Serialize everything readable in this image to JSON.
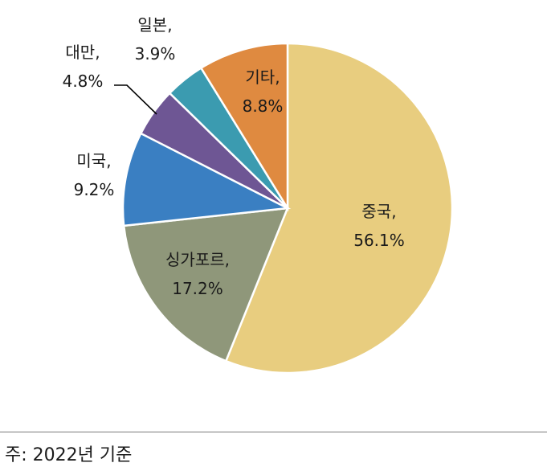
{
  "chart_data": {
    "type": "pie",
    "title": "",
    "slices": [
      {
        "label": "중국,",
        "value": 56.1,
        "value_label": "56.1%",
        "color": "#E8CD7F"
      },
      {
        "label": "싱가포르,",
        "value": 17.2,
        "value_label": "17.2%",
        "color": "#8F977A"
      },
      {
        "label": "미국,",
        "value": 9.2,
        "value_label": "9.2%",
        "color": "#3A7FC2"
      },
      {
        "label": "대만,",
        "value": 4.8,
        "value_label": "4.8%",
        "color": "#6E5694"
      },
      {
        "label": "일본,",
        "value": 3.9,
        "value_label": "3.9%",
        "color": "#3B9BB0"
      },
      {
        "label": "기타,",
        "value": 8.8,
        "value_label": "8.8%",
        "color": "#DF8A40"
      }
    ],
    "start_angle_deg": 0,
    "direction": "clockwise",
    "legend": "none"
  },
  "footer": {
    "note": "주: 2022년 기준"
  }
}
